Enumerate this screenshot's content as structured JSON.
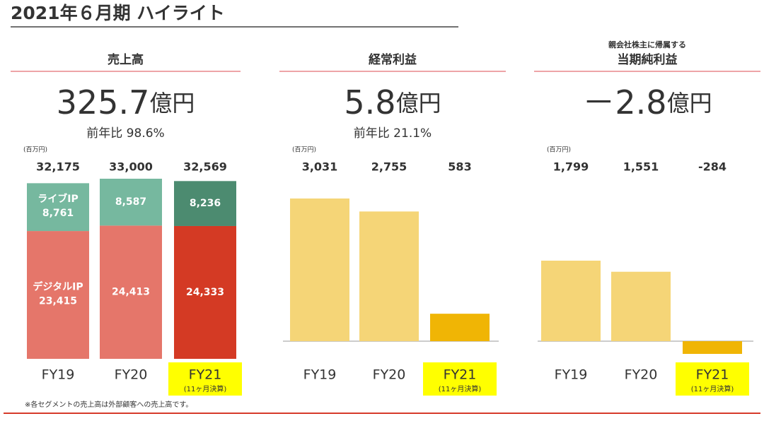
{
  "title": "2021年６月期 ハイライト",
  "footnote": "※各セグメントの売上高は外部顧客への売上高です。",
  "chart_data": [
    {
      "type": "bar",
      "stacked": true,
      "title": "売上高",
      "headline": "325.7",
      "headline_unit": "億円",
      "yoy": "前年比 98.6%",
      "unit_label": "(百万円)",
      "categories": [
        "FY19",
        "FY20",
        "FY21"
      ],
      "category_notes": [
        null,
        null,
        "(11ヶ月決算)"
      ],
      "totals": [
        32175,
        33000,
        32569
      ],
      "total_labels": [
        "32,175",
        "33,000",
        "32,569"
      ],
      "series": [
        {
          "name": "デジタルIP",
          "colors": [
            "#e5766a",
            "#e5766a",
            "#d43a24"
          ],
          "values": [
            23415,
            24413,
            24333
          ],
          "value_labels": [
            "23,415",
            "24,413",
            "24,333"
          ]
        },
        {
          "name": "ライブIP",
          "colors": [
            "#76b89f",
            "#76b89f",
            "#4c8b70"
          ],
          "values": [
            8761,
            8587,
            8236
          ],
          "value_labels": [
            "8,761",
            "8,587",
            "8,236"
          ]
        }
      ]
    },
    {
      "type": "bar",
      "title": "経常利益",
      "headline": "5.8",
      "headline_unit": "億円",
      "yoy": "前年比 21.1%",
      "unit_label": "(百万円)",
      "categories": [
        "FY19",
        "FY20",
        "FY21"
      ],
      "category_notes": [
        null,
        null,
        "(11ヶ月決算)"
      ],
      "colors": [
        "#f5d577",
        "#f5d577",
        "#f0b505"
      ],
      "values": [
        3031,
        2755,
        583
      ],
      "value_labels": [
        "3,031",
        "2,755",
        "583"
      ]
    },
    {
      "type": "bar",
      "subtitle": "親会社株主に帰属する",
      "title": "当期純利益",
      "headline": "－2.8",
      "headline_unit": "億円",
      "unit_label": "(百万円)",
      "categories": [
        "FY19",
        "FY20",
        "FY21"
      ],
      "category_notes": [
        null,
        null,
        "(11ヶ月決算)"
      ],
      "colors": [
        "#f5d577",
        "#f5d577",
        "#f0b505"
      ],
      "values": [
        1799,
        1551,
        -284
      ],
      "value_labels": [
        "1,799",
        "1,551",
        "-284"
      ]
    }
  ]
}
